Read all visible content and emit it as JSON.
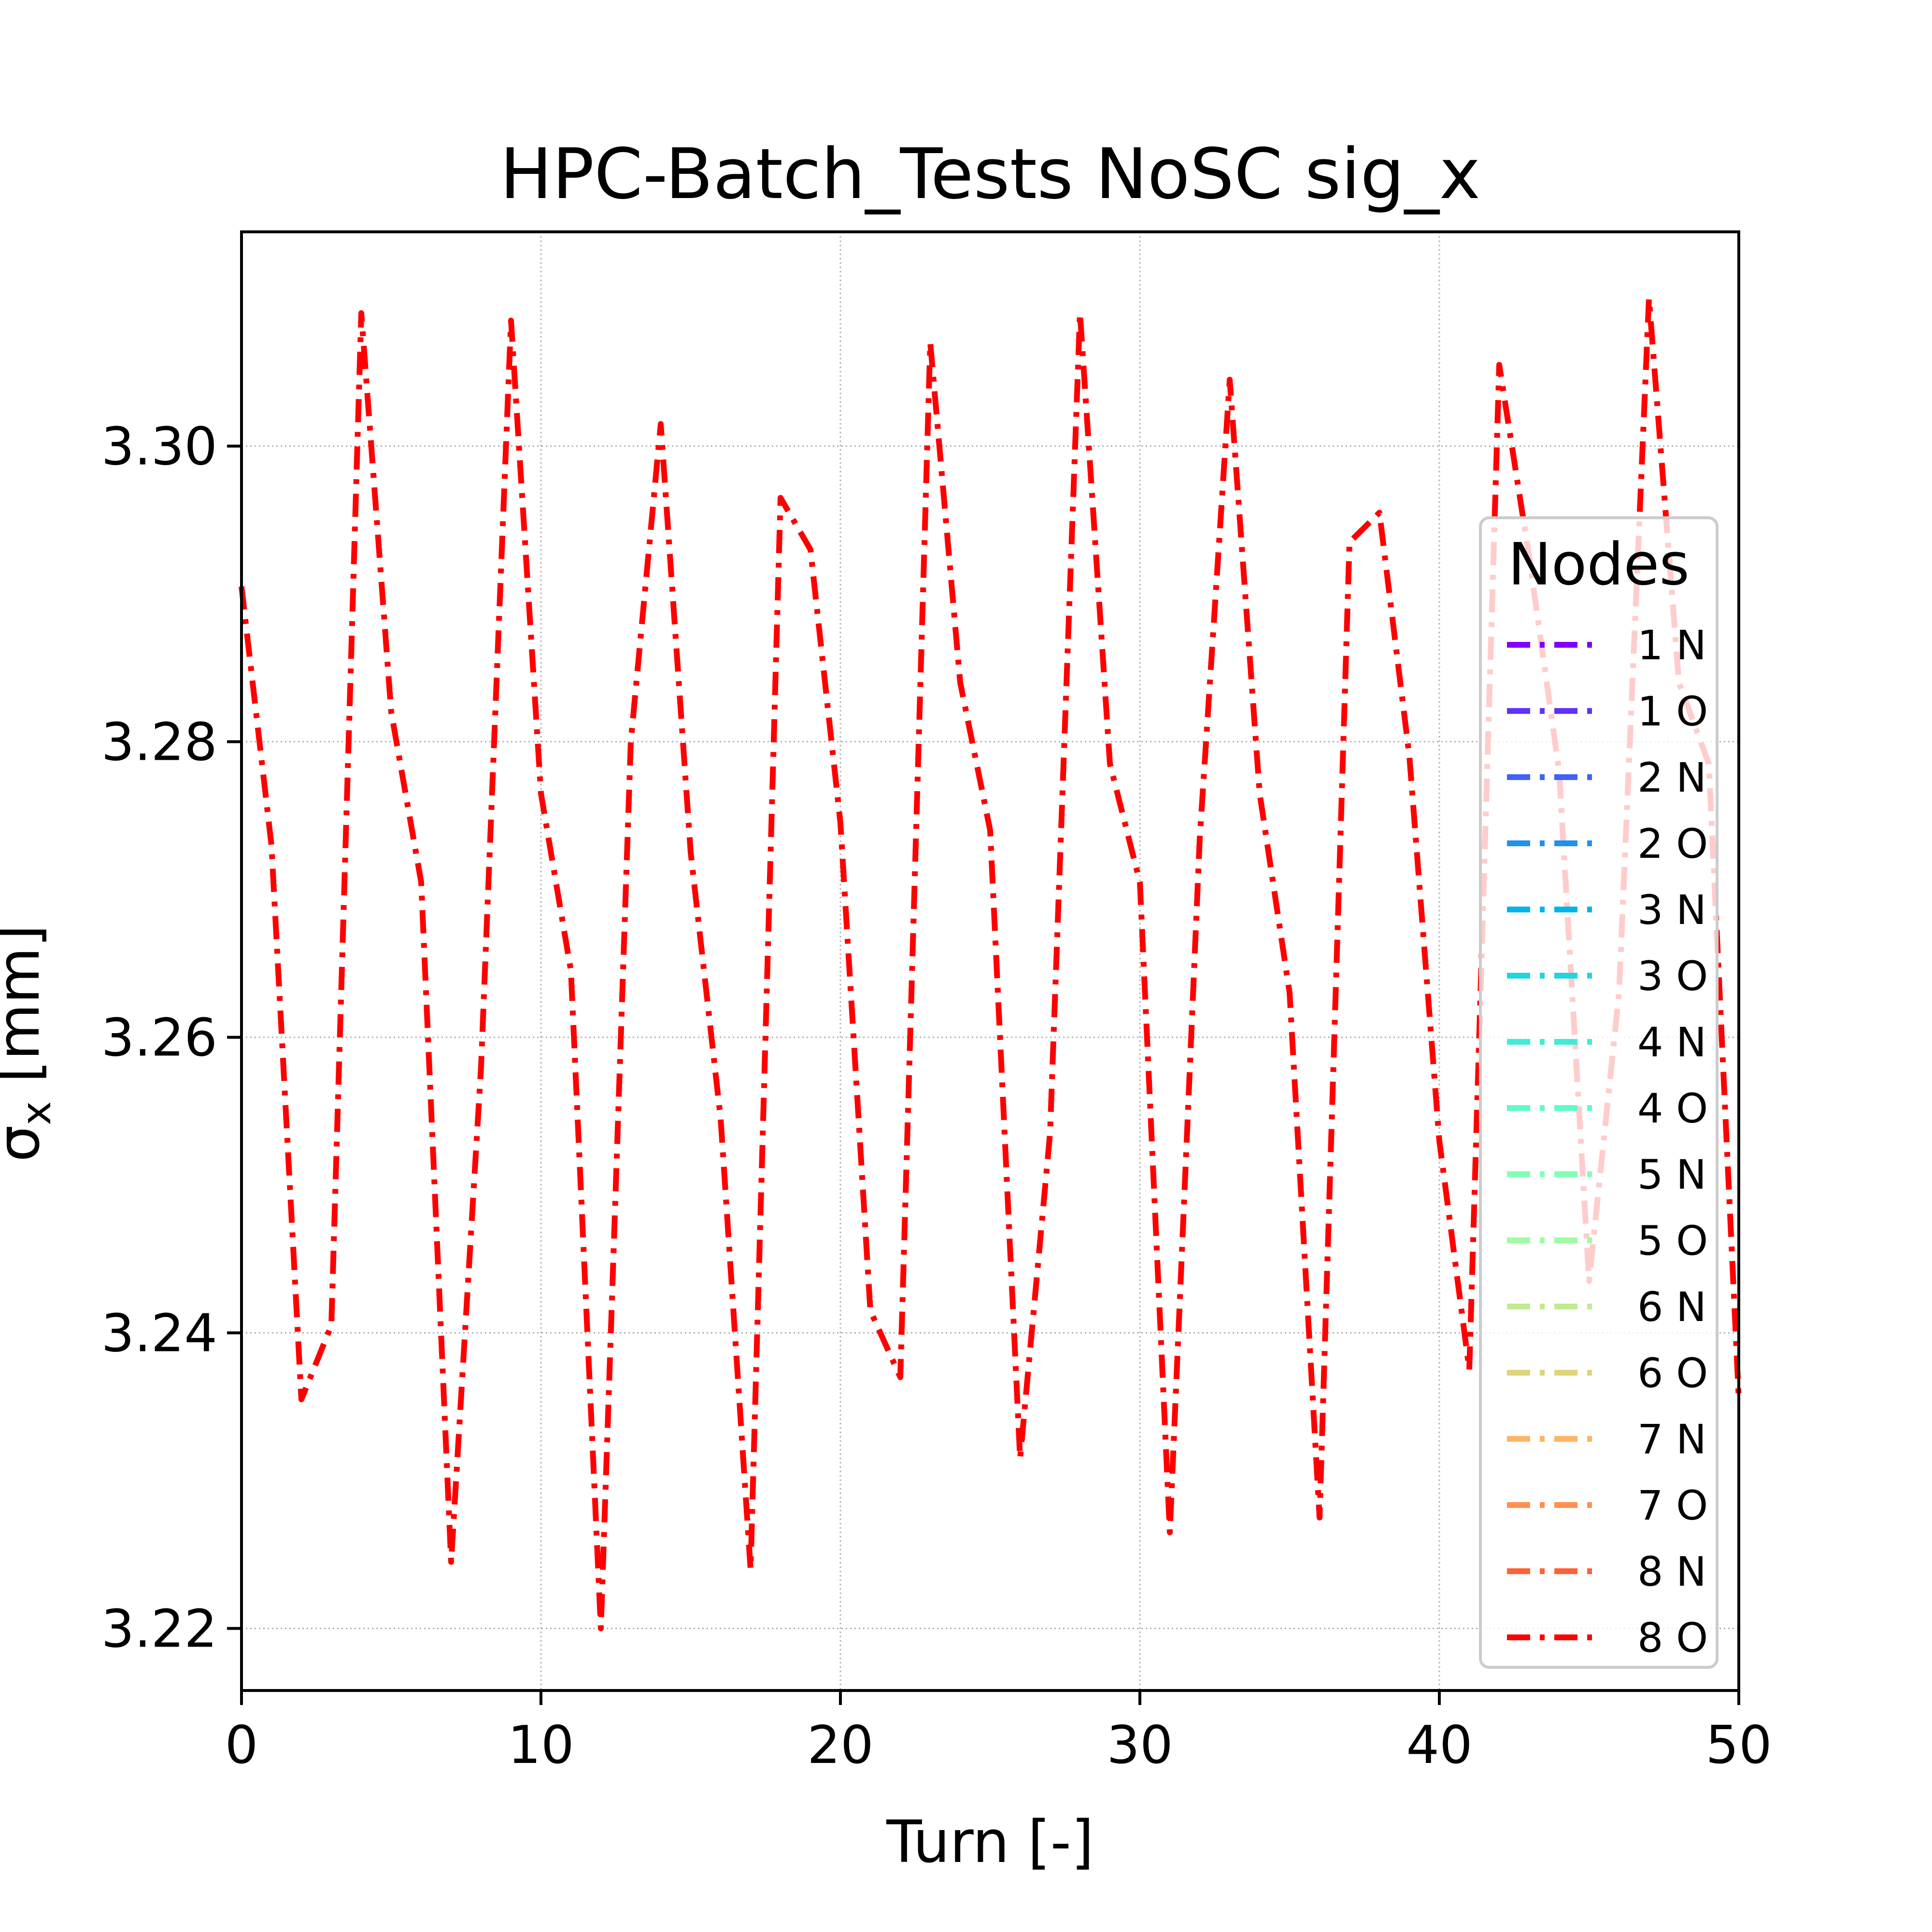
{
  "chart_data": {
    "type": "line",
    "title": "HPC-Batch_Tests NoSC sig_x",
    "xlabel": "Turn [-]",
    "ylabel": "σ",
    "ylabel_subscript": "x",
    "ylabel_unit": " [mm]",
    "xlim": [
      0,
      50
    ],
    "ylim": [
      3.2158,
      3.3145
    ],
    "xticks": [
      0,
      10,
      20,
      30,
      40,
      50
    ],
    "xtick_labels": [
      "0",
      "10",
      "20",
      "30",
      "40",
      "50"
    ],
    "yticks": [
      3.22,
      3.24,
      3.26,
      3.28,
      3.3
    ],
    "ytick_labels": [
      "3.22",
      "3.24",
      "3.26",
      "3.28",
      "3.30"
    ],
    "grid": true,
    "legend": {
      "title": "Nodes",
      "placement": "right"
    },
    "x": [
      0,
      1,
      2,
      3,
      4,
      5,
      6,
      7,
      8,
      9,
      10,
      11,
      12,
      13,
      14,
      15,
      16,
      17,
      18,
      19,
      20,
      21,
      22,
      23,
      24,
      25,
      26,
      27,
      28,
      29,
      30,
      31,
      32,
      33,
      34,
      35,
      36,
      37,
      38,
      39,
      40,
      41,
      42,
      43,
      44,
      45,
      46,
      47,
      48,
      49,
      50
    ],
    "series": [
      {
        "name": "1 N",
        "color": "#8000ff"
      },
      {
        "name": "1 O",
        "color": "#6032fe"
      },
      {
        "name": "2 N",
        "color": "#4062fa"
      },
      {
        "name": "2 O",
        "color": "#2090f4"
      },
      {
        "name": "3 N",
        "color": "#00b5eb"
      },
      {
        "name": "3 O",
        "color": "#20d4e0"
      },
      {
        "name": "4 N",
        "color": "#40ecd3"
      },
      {
        "name": "4 O",
        "color": "#60fbc5"
      },
      {
        "name": "5 N",
        "color": "#80ffb4"
      },
      {
        "name": "5 O",
        "color": "#a0fba2"
      },
      {
        "name": "6 N",
        "color": "#c0ec8f"
      },
      {
        "name": "6 O",
        "color": "#e0d47a"
      },
      {
        "name": "7 N",
        "color": "#ffb464"
      },
      {
        "name": "7 O",
        "color": "#ff904d"
      },
      {
        "name": "8 N",
        "color": "#ff6234"
      },
      {
        "name": "8 O",
        "color": "#ff0000",
        "values": [
          3.2905,
          3.273,
          3.2355,
          3.2405,
          3.309,
          3.282,
          3.2705,
          3.2245,
          3.258,
          3.3085,
          3.2765,
          3.2645,
          3.22,
          3.28,
          3.3015,
          3.2725,
          3.2545,
          3.224,
          3.2965,
          3.293,
          3.2745,
          3.2415,
          3.237,
          3.307,
          3.284,
          3.274,
          3.2315,
          3.2535,
          3.309,
          3.2785,
          3.2705,
          3.2265,
          3.2735,
          3.3045,
          3.2765,
          3.263,
          3.2275,
          3.2935,
          3.2955,
          3.279,
          3.253,
          3.2375,
          3.3055,
          3.2925,
          3.278,
          3.2435,
          3.263,
          3.31,
          3.284,
          3.2785,
          3.2355
        ]
      }
    ]
  }
}
